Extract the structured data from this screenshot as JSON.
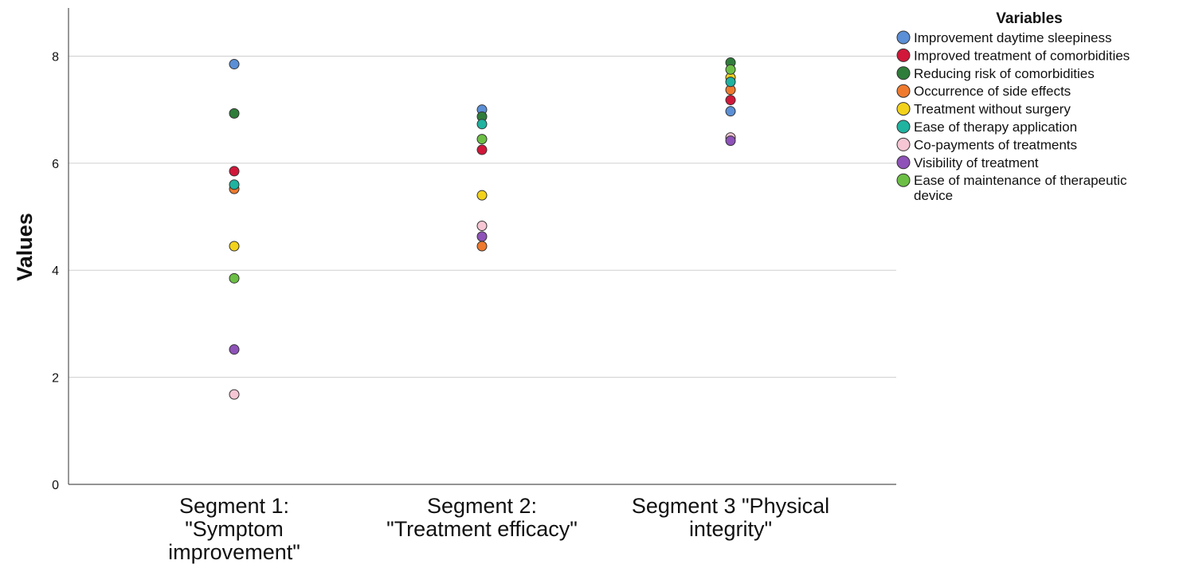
{
  "chart_data": {
    "type": "scatter",
    "categories": [
      "Segment 1: \"Symptom improvement\"",
      "Segment 2: \"Treatment efficacy\"",
      "Segment 3 \"Physical integrity\""
    ],
    "category_lines": [
      [
        "Segment 1:",
        "\"Symptom",
        "improvement\""
      ],
      [
        "Segment 2:",
        "\"Treatment efficacy\""
      ],
      [
        "Segment 3 \"Physical",
        "integrity\""
      ]
    ],
    "ylabel": "Values",
    "ylim": [
      0,
      8.9
    ],
    "yticks": [
      "0",
      "2",
      "4",
      "6",
      "8"
    ],
    "grid": true,
    "legend": {
      "title": "Variables",
      "placement": "top-right"
    },
    "series": [
      {
        "name": "Improvement daytime sleepiness",
        "color": "#5b8fd6",
        "values": [
          7.85,
          7.0,
          6.97
        ]
      },
      {
        "name": "Improved treatment of comorbidities",
        "color": "#d1173a",
        "values": [
          5.85,
          6.25,
          7.18
        ]
      },
      {
        "name": "Reducing risk of comorbidities",
        "color": "#2f7d3a",
        "values": [
          6.93,
          6.87,
          7.88
        ]
      },
      {
        "name": "Occurrence of side effects",
        "color": "#ef7a2e",
        "values": [
          5.52,
          4.45,
          7.37
        ]
      },
      {
        "name": "Treatment without surgery",
        "color": "#f3d21b",
        "values": [
          4.45,
          5.4,
          7.6
        ]
      },
      {
        "name": "Ease of therapy application",
        "color": "#1fb3a0",
        "values": [
          5.6,
          6.73,
          7.52
        ]
      },
      {
        "name": "Co-payments of treatments",
        "color": "#f6c6d4",
        "values": [
          1.68,
          4.83,
          6.48
        ]
      },
      {
        "name": "Visibility of treatment",
        "color": "#8e52b9",
        "values": [
          2.52,
          4.63,
          6.42
        ]
      },
      {
        "name": "Ease of maintenance of therapeutic device",
        "color": "#6cbf45",
        "values": [
          3.85,
          6.45,
          7.75
        ]
      }
    ],
    "legend_lines": [
      [
        "Improvement daytime sleepiness"
      ],
      [
        "Improved treatment of comorbidities"
      ],
      [
        "Reducing risk of comorbidities"
      ],
      [
        "Occurrence of side effects"
      ],
      [
        "Treatment without surgery"
      ],
      [
        "Ease of therapy application"
      ],
      [
        "Co-payments of treatments"
      ],
      [
        "Visibility of treatment"
      ],
      [
        "Ease of maintenance of therapeutic",
        "device"
      ]
    ]
  }
}
